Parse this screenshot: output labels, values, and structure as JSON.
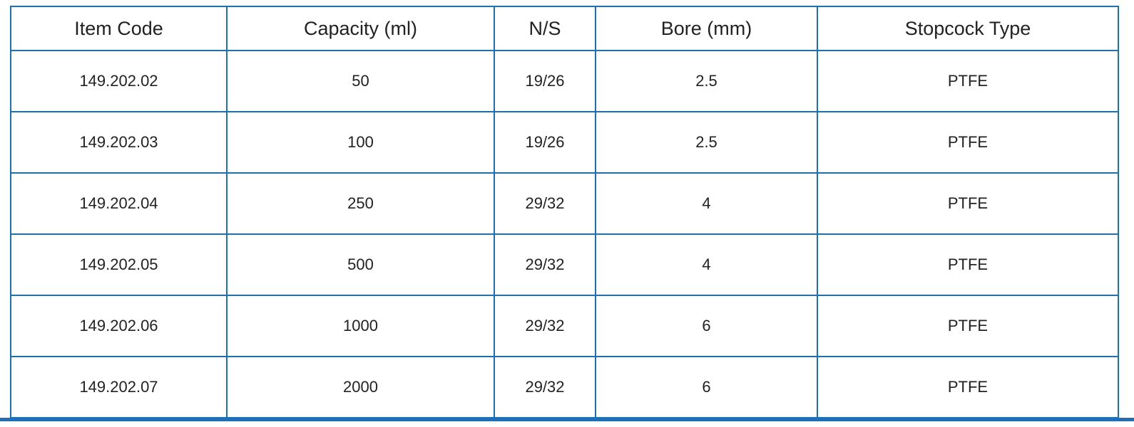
{
  "table": {
    "header": [
      "Item Code",
      "Capacity (ml)",
      "N/S",
      "Bore (mm)",
      "Stopcock Type"
    ],
    "rows": [
      [
        "149.202.02",
        "50",
        "19/26",
        "2.5",
        "PTFE"
      ],
      [
        "149.202.03",
        "100",
        "19/26",
        "2.5",
        "PTFE"
      ],
      [
        "149.202.04",
        "250",
        "29/32",
        "4",
        "PTFE"
      ],
      [
        "149.202.05",
        "500",
        "29/32",
        "4",
        "PTFE"
      ],
      [
        "149.202.06",
        "1000",
        "29/32",
        "6",
        "PTFE"
      ],
      [
        "149.202.07",
        "2000",
        "29/32",
        "6",
        "PTFE"
      ]
    ]
  }
}
